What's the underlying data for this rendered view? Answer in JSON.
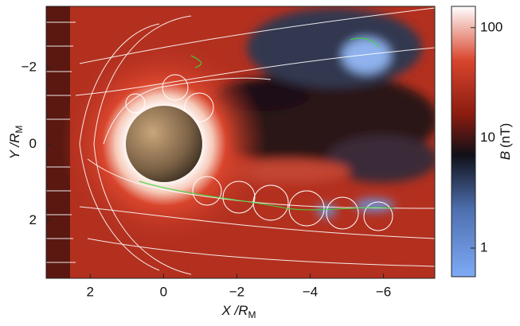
{
  "chart_data": {
    "type": "heatmap",
    "xlabel": "X /R",
    "xlabel_sub": "M",
    "ylabel": "Y /R",
    "ylabel_sub": "M",
    "xlim": [
      3.2,
      -7.4
    ],
    "xticks": [
      2,
      0,
      {
        "value": -2,
        "label": "−2"
      },
      {
        "value": -4,
        "label": "−4"
      },
      {
        "value": -6,
        "label": "−6"
      }
    ],
    "ylim": [
      -3.6,
      3.5
    ],
    "yticks": [
      {
        "value": -2,
        "label": "−2"
      },
      0,
      2
    ],
    "colorbar_label_symbol": "B",
    "colorbar_label_unit": "(nT)",
    "colorbar_scale": "log",
    "clim": [
      0.55,
      156
    ],
    "cticks": [
      1,
      10,
      100
    ]
  }
}
